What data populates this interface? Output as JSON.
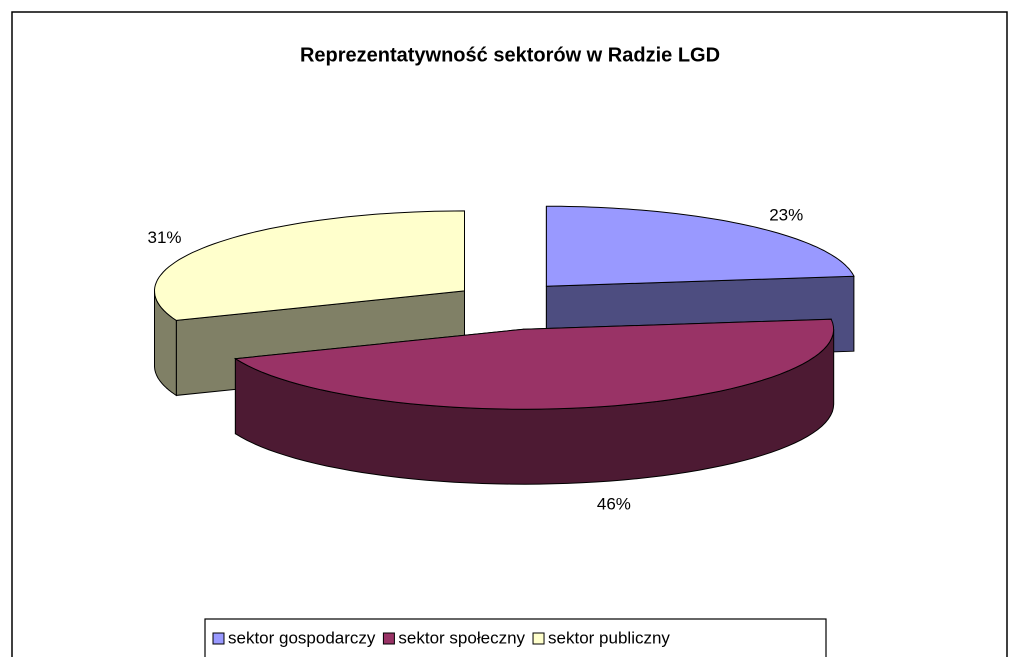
{
  "chart_data": {
    "type": "pie3d",
    "title": "Reprezentatywność sektorów w Radzie LGD",
    "categories": [
      "sektor gospodarczy",
      "sektor społeczny",
      "sektor publiczny"
    ],
    "values": [
      23,
      46,
      31
    ],
    "value_labels": [
      "23%",
      "46%",
      "31%"
    ],
    "colors": [
      "#9999ff",
      "#993366",
      "#ffffcc"
    ]
  }
}
